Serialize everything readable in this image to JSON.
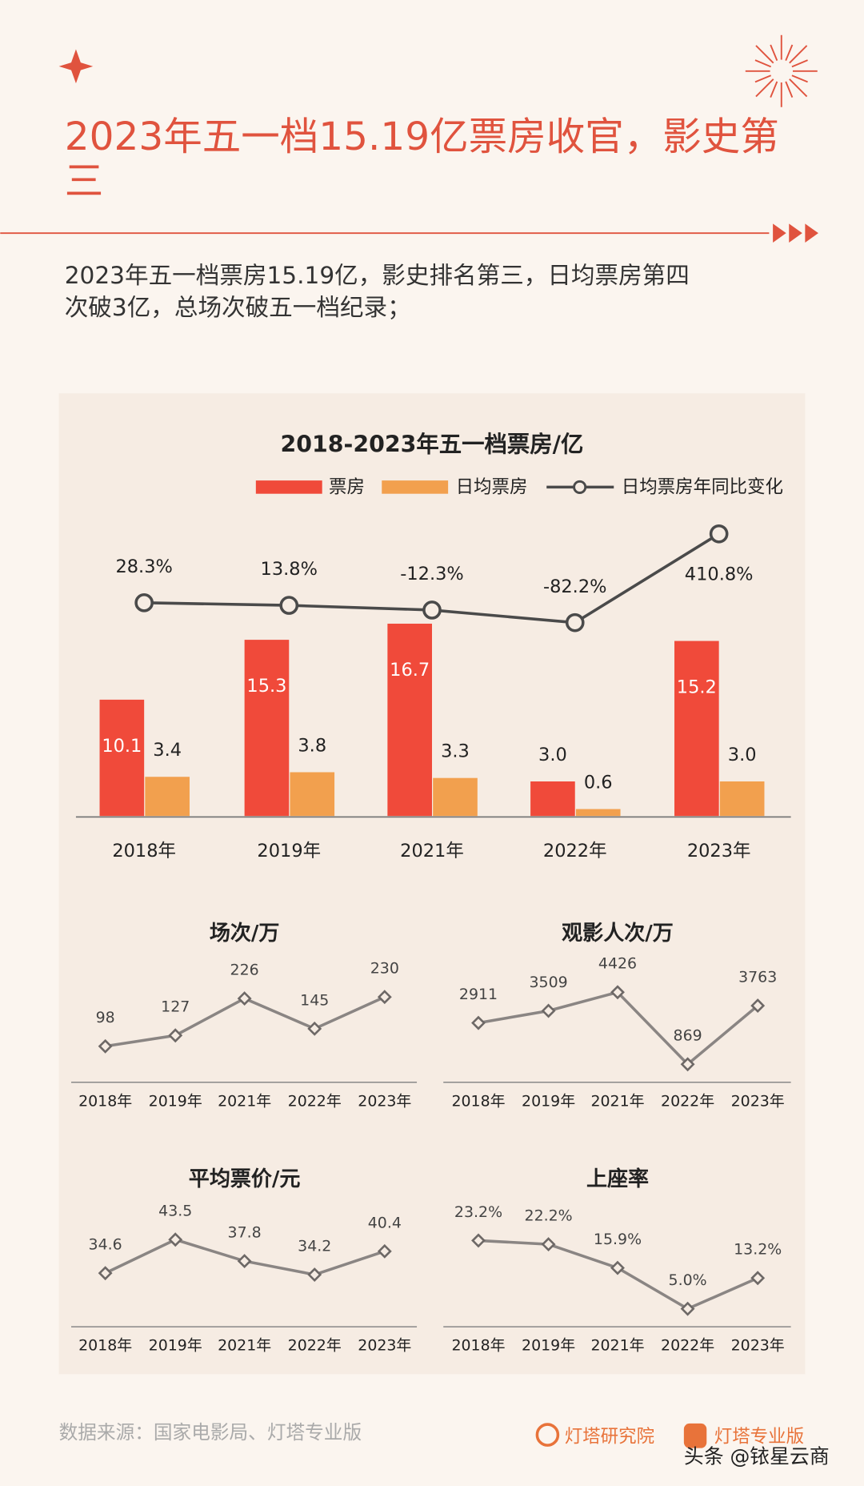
{
  "header": {
    "title_line1": "2023年五一档15.19亿票房收官，影史第",
    "title_line2": "三",
    "summary_line1": "2023年五一档票房15.19亿，影史排名第三，日均票房第四",
    "summary_line2": "次破3亿，总场次破五一档纪录；"
  },
  "colors": {
    "accent": "#e0533e",
    "box_office": "#f04a3a",
    "daily": "#f2a04e",
    "line": "#4a4a4a",
    "background": "#fbf5ef",
    "panel": "#f6ece3"
  },
  "chart_data": [
    {
      "type": "bar",
      "title": "2018-2023年五一档票房/亿",
      "categories": [
        "2018年",
        "2019年",
        "2021年",
        "2022年",
        "2023年"
      ],
      "series": [
        {
          "name": "票房",
          "type": "bar",
          "values": [
            10.1,
            15.3,
            16.7,
            3.0,
            15.2
          ],
          "labels": [
            "10.1",
            "15.3",
            "16.7",
            "3.0",
            "15.2"
          ]
        },
        {
          "name": "日均票房",
          "type": "bar",
          "values": [
            3.4,
            3.8,
            3.3,
            0.6,
            3.0
          ],
          "labels": [
            "3.4",
            "3.8",
            "3.3",
            "0.6",
            "3.0"
          ]
        },
        {
          "name": "日均票房年同比变化",
          "type": "line",
          "values": [
            28.3,
            13.8,
            -12.3,
            -82.2,
            410.8
          ],
          "labels": [
            "28.3%",
            "13.8%",
            "-12.3%",
            "-82.2%",
            "410.8%"
          ]
        }
      ],
      "legend": "top",
      "grid": false
    },
    {
      "type": "line",
      "title": "场次/万",
      "categories": [
        "2018年",
        "2019年",
        "2021年",
        "2022年",
        "2023年"
      ],
      "values": [
        98,
        127,
        226,
        145,
        230
      ],
      "labels": [
        "98",
        "127",
        "226",
        "145",
        "230"
      ]
    },
    {
      "type": "line",
      "title": "观影人次/万",
      "categories": [
        "2018年",
        "2019年",
        "2021年",
        "2022年",
        "2023年"
      ],
      "values": [
        2911,
        3509,
        4426,
        869,
        3763
      ],
      "labels": [
        "2911",
        "3509",
        "4426",
        "869",
        "3763"
      ]
    },
    {
      "type": "line",
      "title": "平均票价/元",
      "categories": [
        "2018年",
        "2019年",
        "2021年",
        "2022年",
        "2023年"
      ],
      "values": [
        34.6,
        43.5,
        37.8,
        34.2,
        40.4
      ],
      "labels": [
        "34.6",
        "43.5",
        "37.8",
        "34.2",
        "40.4"
      ]
    },
    {
      "type": "line",
      "title": "上座率",
      "categories": [
        "2018年",
        "2019年",
        "2021年",
        "2022年",
        "2023年"
      ],
      "values": [
        23.2,
        22.2,
        15.9,
        5.0,
        13.2
      ],
      "labels": [
        "23.2%",
        "22.2%",
        "15.9%",
        "5.0%",
        "13.2%"
      ]
    }
  ],
  "footer": {
    "source": "数据来源：国家电影局、灯塔专业版",
    "logo1": "灯塔研究院",
    "logo2": "灯塔专业版",
    "watermark": "头条 @铱星云商"
  }
}
